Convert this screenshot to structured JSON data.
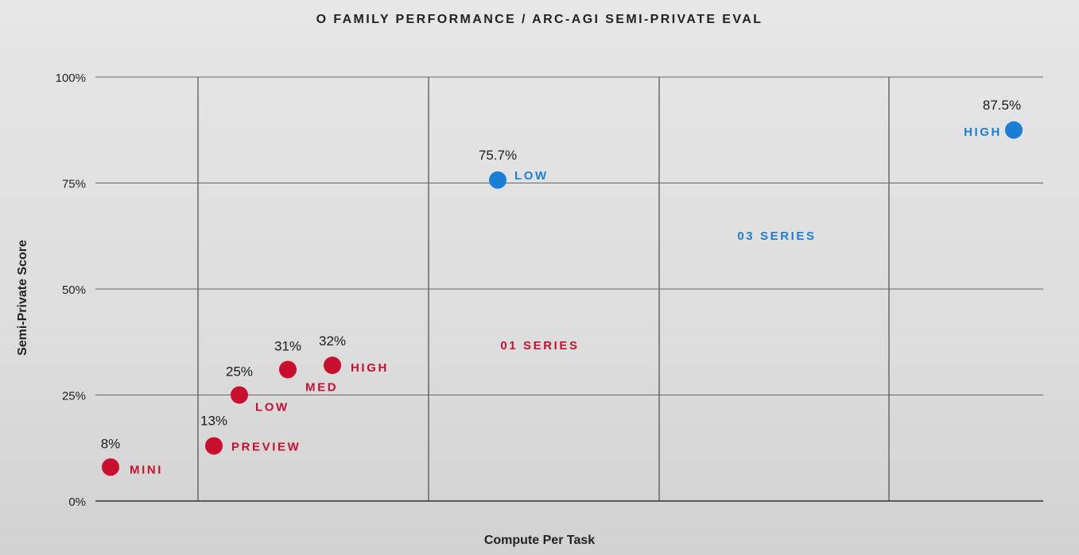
{
  "chart_data": {
    "type": "scatter",
    "title": "O FAMILY PERFORMANCE / ARC-AGI SEMI-PRIVATE EVAL",
    "xlabel": "Compute Per Task",
    "ylabel": "Semi-Private Score",
    "ylim": [
      0,
      100
    ],
    "yticks": [
      {
        "value": 0,
        "label": "0%"
      },
      {
        "value": 25,
        "label": "25%"
      },
      {
        "value": 50,
        "label": "50%"
      },
      {
        "value": 75,
        "label": "75%"
      },
      {
        "value": 100,
        "label": "100%"
      }
    ],
    "x_ticks_labeled": false,
    "grid": true,
    "series": [
      {
        "name": "01 SERIES",
        "color": "#c8102e",
        "points": [
          {
            "label": "MINI",
            "y": 8,
            "value_label": "8%"
          },
          {
            "label": "PREVIEW",
            "y": 13,
            "value_label": "13%"
          },
          {
            "label": "LOW",
            "y": 25,
            "value_label": "25%"
          },
          {
            "label": "MED",
            "y": 31,
            "value_label": "31%"
          },
          {
            "label": "HIGH",
            "y": 32,
            "value_label": "32%"
          }
        ]
      },
      {
        "name": "03 SERIES",
        "color": "#1a7fd4",
        "points": [
          {
            "label": "LOW",
            "y": 75.7,
            "value_label": "75.7%"
          },
          {
            "label": "HIGH",
            "y": 87.5,
            "value_label": "87.5%"
          }
        ]
      }
    ]
  }
}
